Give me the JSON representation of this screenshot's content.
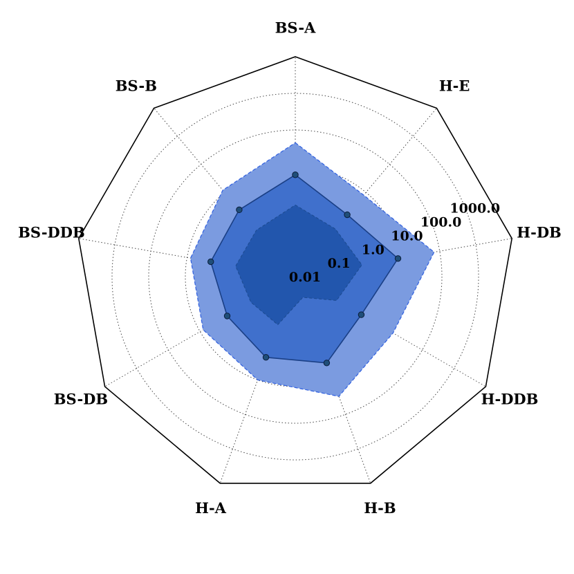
{
  "chart_data": {
    "type": "radar",
    "scale": "log",
    "rmin": 0.01,
    "rmax": 10000,
    "grid": true,
    "axes": [
      "BS-A",
      "H-E",
      "H-DB",
      "H-DDB",
      "H-B",
      "H-A",
      "BS-DB",
      "BS-DDB",
      "BS-B"
    ],
    "radial_ticks": [
      {
        "value": 0.01,
        "label": "0.01"
      },
      {
        "value": 0.1,
        "label": "0.1"
      },
      {
        "value": 1,
        "label": "1.0"
      },
      {
        "value": 10,
        "label": "10.0"
      },
      {
        "value": 100,
        "label": "100.0"
      },
      {
        "value": 1000,
        "label": "1000.0"
      }
    ],
    "series": [
      {
        "role": "upper",
        "color": "#7b9be0",
        "values": [
          45,
          8,
          70,
          12,
          30,
          10,
          8,
          8,
          12
        ]
      },
      {
        "role": "median",
        "color": "#4070cc",
        "marker_color": "#1f4e79",
        "values": [
          6,
          1.6,
          7,
          1.2,
          3.2,
          2.2,
          1.4,
          2.2,
          2.4
        ]
      },
      {
        "role": "lower",
        "color": "#2256ad",
        "values": [
          0.9,
          0.5,
          0.7,
          0.2,
          0.04,
          0.25,
          0.25,
          0.45,
          0.45
        ]
      }
    ]
  }
}
